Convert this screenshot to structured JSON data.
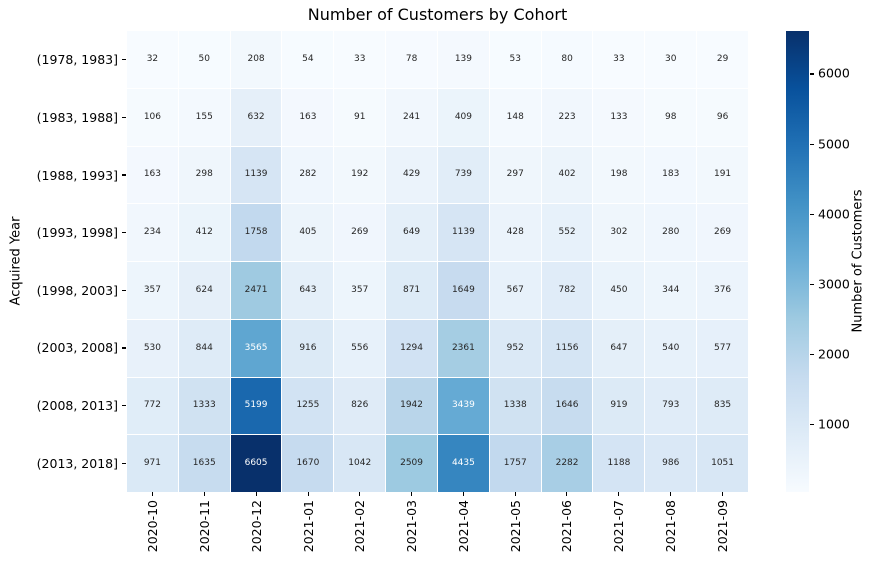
{
  "chart_data": {
    "type": "heatmap",
    "title": "Number of Customers by Cohort",
    "xlabel": "",
    "ylabel": "Acquired Year",
    "x_categories": [
      "2020-10",
      "2020-11",
      "2020-12",
      "2021-01",
      "2021-02",
      "2021-03",
      "2021-04",
      "2021-05",
      "2021-06",
      "2021-07",
      "2021-08",
      "2021-09"
    ],
    "y_categories": [
      "(1978, 1983]",
      "(1983, 1988]",
      "(1988, 1993]",
      "(1993, 1998]",
      "(1998, 2003]",
      "(2003, 2008]",
      "(2008, 2013]",
      "(2013, 2018]"
    ],
    "values": [
      [
        32,
        50,
        208,
        54,
        33,
        78,
        139,
        53,
        80,
        33,
        30,
        29
      ],
      [
        106,
        155,
        632,
        163,
        91,
        241,
        409,
        148,
        223,
        133,
        98,
        96
      ],
      [
        163,
        298,
        1139,
        282,
        192,
        429,
        739,
        297,
        402,
        198,
        183,
        191
      ],
      [
        234,
        412,
        1758,
        405,
        269,
        649,
        1139,
        428,
        552,
        302,
        280,
        269
      ],
      [
        357,
        624,
        2471,
        643,
        357,
        871,
        1649,
        567,
        782,
        450,
        344,
        376
      ],
      [
        530,
        844,
        3565,
        916,
        556,
        1294,
        2361,
        952,
        1156,
        647,
        540,
        577
      ],
      [
        772,
        1333,
        5199,
        1255,
        826,
        1942,
        3439,
        1338,
        1646,
        919,
        793,
        835
      ],
      [
        971,
        1635,
        6605,
        1670,
        1042,
        2509,
        4435,
        1757,
        2282,
        1188,
        986,
        1051
      ]
    ],
    "vmin": 29,
    "vmax": 6605,
    "annotated": true,
    "grid": false,
    "colorbar": {
      "label": "Number of Customers",
      "ticks": [
        1000,
        2000,
        3000,
        4000,
        5000,
        6000
      ],
      "position": "right"
    },
    "colormap": {
      "name": "Blues",
      "stops": [
        "#f7fbff",
        "#deebf7",
        "#c6dbef",
        "#9ecae1",
        "#6baed6",
        "#4292c6",
        "#2171b5",
        "#08519c",
        "#08306b"
      ]
    },
    "annotation_text_colors": {
      "dark": "#262626",
      "light": "#ffffff"
    },
    "background": "#ffffff"
  }
}
